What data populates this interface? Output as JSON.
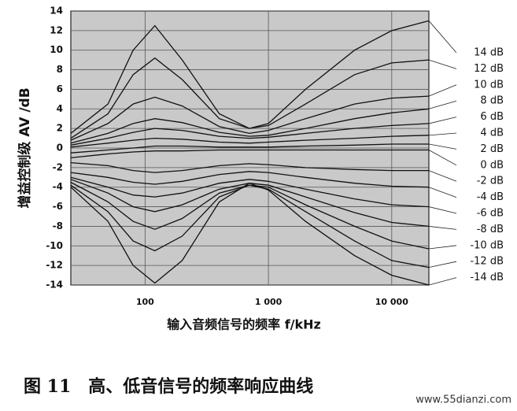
{
  "chart_data": {
    "type": "line",
    "y_label": "增益控制级 AV /dB",
    "x_label": "输入音频信号的频率 f/kHz",
    "caption": "图 11　高、低音信号的频率响应曲线",
    "watermark": "www.55dianzi.com",
    "log_x": true,
    "grid": true,
    "xlim": [
      25,
      20000
    ],
    "xticks": [
      100,
      {
        "value": 1000,
        "label": "1 000"
      },
      {
        "value": 10000,
        "label": "10 000"
      }
    ],
    "ylim": [
      -14,
      14
    ],
    "yticks": [
      -14,
      -12,
      -10,
      -8,
      -6,
      -4,
      -2,
      0,
      2,
      4,
      6,
      8,
      10,
      12,
      14
    ],
    "x": [
      25,
      50,
      80,
      120,
      200,
      400,
      700,
      1000,
      2000,
      5000,
      10000,
      20000
    ],
    "series": [
      {
        "name": "14 dB",
        "color": "#111111",
        "values": [
          1.5,
          4.5,
          10,
          12.5,
          9,
          3.5,
          2,
          2.5,
          6,
          10,
          12,
          13
        ]
      },
      {
        "name": "12 dB",
        "color": "#111111",
        "values": [
          1,
          3.5,
          7.5,
          9.2,
          7,
          3,
          2,
          2.3,
          4.5,
          7.5,
          8.7,
          9
        ]
      },
      {
        "name": "10 dB",
        "color": "#111111",
        "values": [
          0.8,
          2.5,
          4.5,
          5.2,
          4.3,
          2.2,
          1.5,
          1.8,
          3,
          4.5,
          5.1,
          5.3
        ]
      },
      {
        "name": "8 dB",
        "color": "#333333",
        "values": [
          0.5,
          1.5,
          2.5,
          3,
          2.6,
          1.6,
          1.2,
          1.3,
          2,
          3,
          3.6,
          4
        ]
      },
      {
        "name": "6 dB",
        "color": "#333333",
        "values": [
          0.3,
          1,
          1.6,
          2,
          1.8,
          1.2,
          1,
          1.1,
          1.5,
          2,
          2.3,
          2.5
        ]
      },
      {
        "name": "4 dB",
        "color": "#333333",
        "values": [
          0.1,
          0.5,
          0.8,
          1,
          0.9,
          0.6,
          0.5,
          0.6,
          0.8,
          1,
          1.2,
          1.3
        ]
      },
      {
        "name": "2 dB",
        "color": "#333333",
        "values": [
          -0.5,
          -0.2,
          0,
          0.2,
          0.2,
          0.1,
          0.1,
          0.1,
          0.2,
          0.3,
          0.4,
          0.4
        ]
      },
      {
        "name": "0 dB",
        "color": "#111111",
        "values": [
          -1,
          -0.6,
          -0.4,
          -0.3,
          -0.3,
          -0.2,
          -0.2,
          -0.2,
          -0.2,
          -0.2,
          -0.2,
          -0.2
        ]
      },
      {
        "name": "-2 dB",
        "color": "#333333",
        "values": [
          -1.5,
          -1.8,
          -2.3,
          -2.5,
          -2.3,
          -1.8,
          -1.6,
          -1.7,
          -2,
          -2.2,
          -2.3,
          -2.3
        ]
      },
      {
        "name": "-4 dB",
        "color": "#333333",
        "values": [
          -2.5,
          -3,
          -3.5,
          -3.7,
          -3.4,
          -2.7,
          -2.4,
          -2.5,
          -3,
          -3.6,
          -3.9,
          -4
        ]
      },
      {
        "name": "-6 dB",
        "color": "#333333",
        "values": [
          -3,
          -4,
          -4.8,
          -5,
          -4.6,
          -3.6,
          -3.2,
          -3.4,
          -4.2,
          -5.2,
          -5.8,
          -6
        ]
      },
      {
        "name": "-8 dB",
        "color": "#333333",
        "values": [
          -3.2,
          -4.6,
          -6,
          -6.5,
          -5.8,
          -4.2,
          -3.6,
          -3.8,
          -5,
          -6.6,
          -7.6,
          -8
        ]
      },
      {
        "name": "-10 dB",
        "color": "#111111",
        "values": [
          -3.5,
          -5.5,
          -7.5,
          -8.3,
          -7.2,
          -4.6,
          -3.8,
          -4,
          -5.8,
          -8,
          -9.5,
          -10.3
        ]
      },
      {
        "name": "-12 dB",
        "color": "#333333",
        "values": [
          -3.8,
          -6.5,
          -9.5,
          -10.5,
          -9,
          -5,
          -3.8,
          -4.2,
          -6.5,
          -9.5,
          -11.5,
          -12.2
        ]
      },
      {
        "name": "-14 dB",
        "color": "#111111",
        "values": [
          -4,
          -7.5,
          -12,
          -13.8,
          -11.5,
          -5.5,
          -3.6,
          -4.3,
          -7.5,
          -11,
          -13,
          -14
        ]
      }
    ]
  }
}
